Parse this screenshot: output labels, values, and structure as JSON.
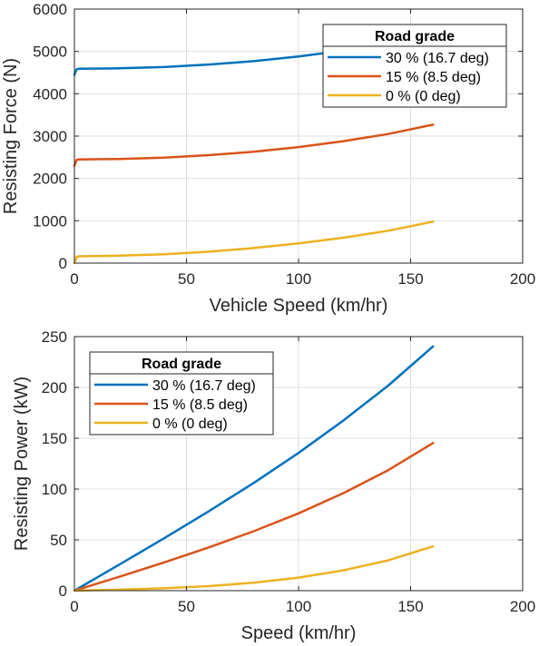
{
  "chart_data": [
    {
      "type": "line",
      "title": "",
      "xlabel": "Vehicle Speed (km/hr)",
      "ylabel": "Resisting Force (N)",
      "xlim": [
        0,
        200
      ],
      "ylim": [
        0,
        6000
      ],
      "xticks": [
        "0",
        "50",
        "100",
        "150",
        "200"
      ],
      "yticks": [
        "0",
        "1000",
        "2000",
        "3000",
        "4000",
        "5000",
        "6000"
      ],
      "grid": true,
      "legend_position": "top-right",
      "legend_title": "Road grade",
      "series": [
        {
          "name": "30 % (16.7 deg)",
          "color": "#0072BD",
          "x": [
            0,
            1,
            2,
            20,
            40,
            60,
            80,
            100,
            120,
            140,
            160
          ],
          "y": [
            4450,
            4580,
            4590,
            4600,
            4630,
            4690,
            4770,
            4880,
            5020,
            5190,
            5390
          ]
        },
        {
          "name": "15 % (8.5 deg)",
          "color": "#D95319",
          "x": [
            0,
            1,
            2,
            20,
            40,
            60,
            80,
            100,
            120,
            140,
            160
          ],
          "y": [
            2300,
            2440,
            2450,
            2460,
            2490,
            2550,
            2630,
            2740,
            2880,
            3050,
            3270
          ]
        },
        {
          "name": "0 % (0 deg)",
          "color": "#EDB120",
          "x": [
            0,
            1,
            2,
            20,
            40,
            60,
            80,
            100,
            120,
            140,
            160
          ],
          "y": [
            0,
            150,
            160,
            175,
            210,
            270,
            355,
            465,
            600,
            765,
            980
          ]
        }
      ]
    },
    {
      "type": "line",
      "title": "",
      "xlabel": "Speed (km/hr)",
      "ylabel": "Resisting Power (kW)",
      "xlim": [
        0,
        200
      ],
      "ylim": [
        0,
        250
      ],
      "xticks": [
        "0",
        "50",
        "100",
        "150",
        "200"
      ],
      "yticks": [
        "0",
        "50",
        "100",
        "150",
        "200",
        "250"
      ],
      "grid": true,
      "legend_position": "top-left",
      "legend_title": "Road grade",
      "series": [
        {
          "name": "30 % (16.7 deg)",
          "color": "#0072BD",
          "x": [
            0,
            20,
            40,
            60,
            80,
            100,
            120,
            140,
            160
          ],
          "y": [
            0,
            25.6,
            51.5,
            78.2,
            106,
            135.5,
            167.4,
            201.8,
            240.4
          ]
        },
        {
          "name": "15 % (8.5 deg)",
          "color": "#D95319",
          "x": [
            0,
            20,
            40,
            60,
            80,
            100,
            120,
            140,
            160
          ],
          "y": [
            0,
            13.7,
            27.8,
            42.6,
            58.5,
            76.1,
            96.0,
            118.6,
            145.3
          ]
        },
        {
          "name": "0 % (0 deg)",
          "color": "#EDB120",
          "x": [
            0,
            20,
            40,
            60,
            80,
            100,
            120,
            140,
            160
          ],
          "y": [
            0,
            1.0,
            2.3,
            4.5,
            7.9,
            12.9,
            20.0,
            29.8,
            43.6
          ]
        }
      ]
    }
  ]
}
